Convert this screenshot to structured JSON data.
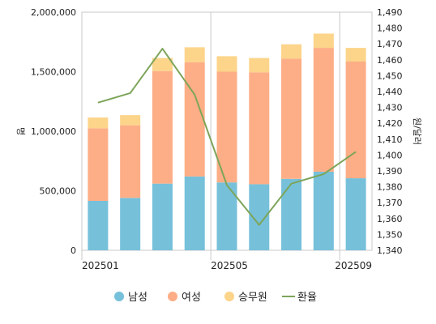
{
  "chart_data": {
    "type": "bar",
    "stacked": true,
    "categories": [
      "202501",
      "202502",
      "202503",
      "202504",
      "202505",
      "202506",
      "202507",
      "202508",
      "202509"
    ],
    "x_tick_labels_shown": [
      "202501",
      "202505",
      "202509"
    ],
    "series": [
      {
        "name": "남성",
        "type": "bar",
        "axis": "left",
        "color": "#76C0DA",
        "values": [
          415000,
          440000,
          560000,
          620000,
          570000,
          555000,
          600000,
          660000,
          605000
        ]
      },
      {
        "name": "여성",
        "type": "bar",
        "axis": "left",
        "color": "#FDAE86",
        "values": [
          610000,
          610000,
          945000,
          960000,
          930000,
          940000,
          1010000,
          1040000,
          980000
        ]
      },
      {
        "name": "승무원",
        "type": "bar",
        "axis": "left",
        "color": "#FCD48A",
        "values": [
          90000,
          85000,
          110000,
          125000,
          130000,
          120000,
          120000,
          120000,
          115000
        ]
      },
      {
        "name": "환율",
        "type": "line",
        "axis": "right",
        "color": "#7DA55A",
        "values": [
          1433,
          1439,
          1467,
          1438,
          1381,
          1356,
          1382,
          1388,
          1402
        ]
      }
    ],
    "y_left": {
      "label": "명",
      "min": 0,
      "max": 2000000,
      "ticks": [
        "0",
        "500,000",
        "1,000,000",
        "1,500,000",
        "2,000,000"
      ]
    },
    "y_right": {
      "label": "원/달러",
      "min": 1340,
      "max": 1490,
      "ticks": [
        "1,340",
        "1,350",
        "1,360",
        "1,370",
        "1,380",
        "1,390",
        "1,400",
        "1,410",
        "1,420",
        "1,430",
        "1,440",
        "1,450",
        "1,460",
        "1,470",
        "1,480",
        "1,490"
      ]
    },
    "grid": {
      "vertical_at": [
        "202501",
        "202505",
        "202509"
      ]
    },
    "legend_position": "bottom"
  }
}
